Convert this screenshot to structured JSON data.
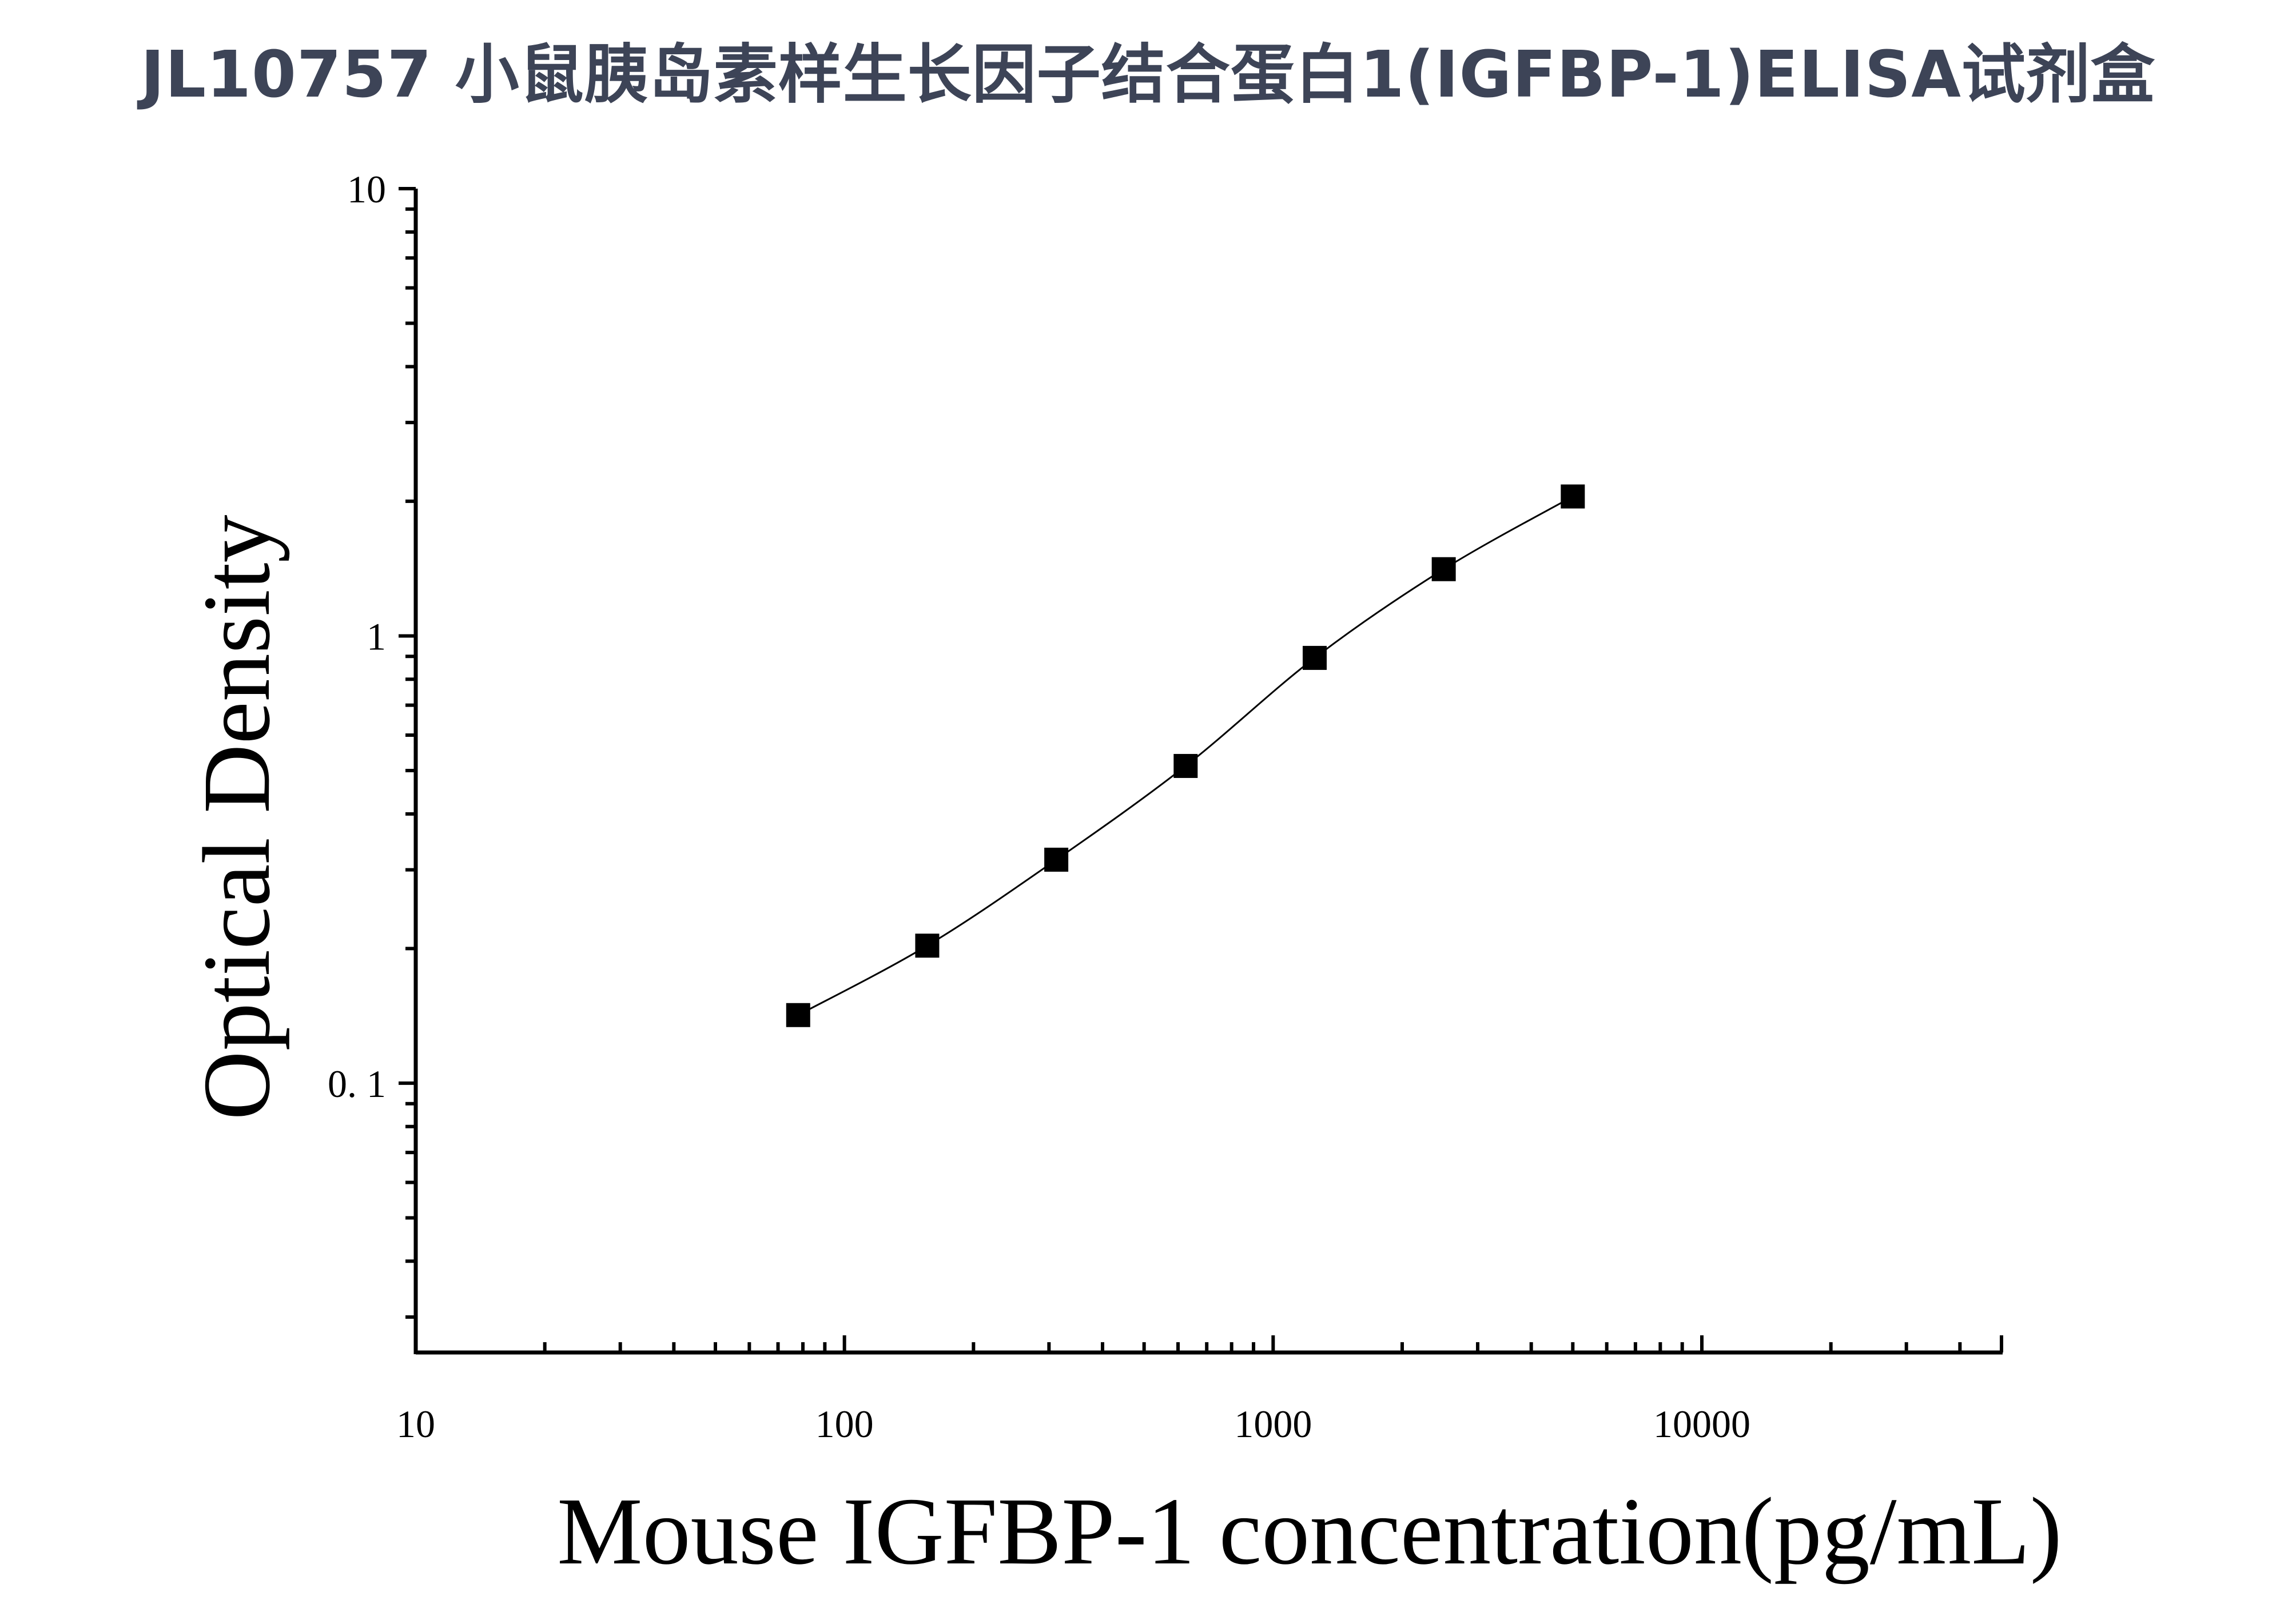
{
  "title": "JL10757 小鼠胰岛素样生长因子结合蛋白1(IGFBP-1)ELISA试剂盒",
  "chart_data": {
    "type": "scatter",
    "x_scale": "log",
    "y_scale": "log",
    "xlabel": "Mouse IGFBP-1 concentration(pg/mL)",
    "ylabel": "Optical Density",
    "xlim": [
      10,
      50000
    ],
    "ylim": [
      0.025,
      10
    ],
    "x_tick_labels": [
      "10",
      "100",
      "1000",
      "10000"
    ],
    "y_tick_labels": [
      "0. 1",
      "1",
      "10"
    ],
    "series": [
      {
        "x": [
          78,
          156,
          312,
          625,
          1250,
          2500,
          5000
        ],
        "y": [
          0.142,
          0.203,
          0.316,
          0.512,
          0.893,
          1.41,
          2.05
        ],
        "marker": "square",
        "color": "#000000",
        "fit_line": true
      }
    ]
  }
}
